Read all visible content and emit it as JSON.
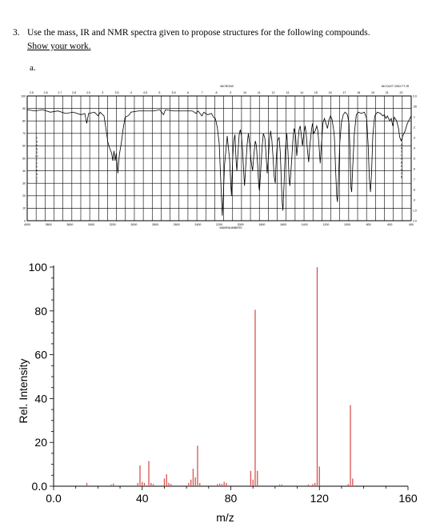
{
  "question": {
    "number": "3.",
    "text_line1": "Use the mass, IR and NMR spectra given to propose structures for the following compounds.",
    "text_line2": "Show your work",
    "text_line2_suffix": "."
  },
  "part_label": "a.",
  "ir_spectrum": {
    "header_micron_label": "MICRONS",
    "header_instrument": "NICOLET 20SX FT-IR",
    "xlabel": "WAVENUMBERS",
    "left_axis_letters": [
      "T",
      "R",
      "A",
      "N",
      "S",
      "M",
      "I",
      "T",
      "T",
      "A",
      "N",
      "C",
      "E"
    ],
    "right_axis_letters": [
      "A",
      "B",
      "S",
      "O",
      "R",
      "B",
      "A",
      "N",
      "C",
      "E"
    ],
    "micron_ticks": [
      "2.5",
      "2.6",
      "2.7",
      "2.8",
      "2.9",
      "3",
      "3.5",
      "4",
      "4.5",
      "5",
      "5.5",
      "6",
      "7",
      "8",
      "9",
      "10",
      "11",
      "12",
      "13",
      "14",
      "15",
      "16",
      "17",
      "18",
      "19",
      "21",
      "22"
    ],
    "wavenumber_ticks": [
      "4000",
      "3800",
      "3600",
      "3400",
      "3200",
      "3000",
      "2800",
      "2600",
      "2400",
      "2200",
      "2000",
      "1800",
      "1600",
      "1400",
      "1200",
      "1000",
      "800",
      "600",
      "450"
    ],
    "transmittance_ticks": [
      "100",
      "90",
      "80",
      "70",
      "60",
      "50",
      "40",
      "30",
      "20",
      "10",
      "0"
    ],
    "absorbance_ticks": [
      "0.0",
      ".05",
      ".1",
      ".2",
      ".3",
      ".4",
      ".5",
      ".6",
      ".7",
      ".8",
      ".9",
      "1.0",
      "2.0"
    ]
  },
  "chart_data": {
    "type": "bar",
    "title": "",
    "xlabel": "m/z",
    "ylabel": "Rel. Intensity",
    "xlim": [
      0,
      160
    ],
    "ylim": [
      0,
      100
    ],
    "xticks": [
      "0.0",
      "40",
      "80",
      "120",
      "160"
    ],
    "yticks": [
      "0.0",
      "20",
      "40",
      "60",
      "80",
      "100"
    ],
    "bar_color": "#d9534f",
    "peaks": [
      {
        "mz": 15,
        "intensity": 1.5
      },
      {
        "mz": 26,
        "intensity": 0.8
      },
      {
        "mz": 27,
        "intensity": 1.2
      },
      {
        "mz": 38,
        "intensity": 1.5
      },
      {
        "mz": 39,
        "intensity": 9.5
      },
      {
        "mz": 40,
        "intensity": 2
      },
      {
        "mz": 41,
        "intensity": 1.5
      },
      {
        "mz": 43,
        "intensity": 11.5
      },
      {
        "mz": 44,
        "intensity": 1.5
      },
      {
        "mz": 45,
        "intensity": 1
      },
      {
        "mz": 50,
        "intensity": 3.5
      },
      {
        "mz": 51,
        "intensity": 5.5
      },
      {
        "mz": 52,
        "intensity": 1.5
      },
      {
        "mz": 53,
        "intensity": 1
      },
      {
        "mz": 61,
        "intensity": 1.5
      },
      {
        "mz": 62,
        "intensity": 3
      },
      {
        "mz": 63,
        "intensity": 8
      },
      {
        "mz": 64,
        "intensity": 4
      },
      {
        "mz": 65,
        "intensity": 18.5
      },
      {
        "mz": 66,
        "intensity": 1.5
      },
      {
        "mz": 74,
        "intensity": 1
      },
      {
        "mz": 75,
        "intensity": 1.2
      },
      {
        "mz": 76,
        "intensity": 1
      },
      {
        "mz": 77,
        "intensity": 2
      },
      {
        "mz": 78,
        "intensity": 1.5
      },
      {
        "mz": 89,
        "intensity": 7
      },
      {
        "mz": 90,
        "intensity": 3
      },
      {
        "mz": 91,
        "intensity": 80.5
      },
      {
        "mz": 92,
        "intensity": 7
      },
      {
        "mz": 102,
        "intensity": 0.8
      },
      {
        "mz": 103,
        "intensity": 0.8
      },
      {
        "mz": 115,
        "intensity": 0.8
      },
      {
        "mz": 117,
        "intensity": 1
      },
      {
        "mz": 118,
        "intensity": 1.5
      },
      {
        "mz": 119,
        "intensity": 100
      },
      {
        "mz": 120,
        "intensity": 9
      },
      {
        "mz": 133,
        "intensity": 1
      },
      {
        "mz": 134,
        "intensity": 37
      },
      {
        "mz": 135,
        "intensity": 3.5
      }
    ]
  }
}
